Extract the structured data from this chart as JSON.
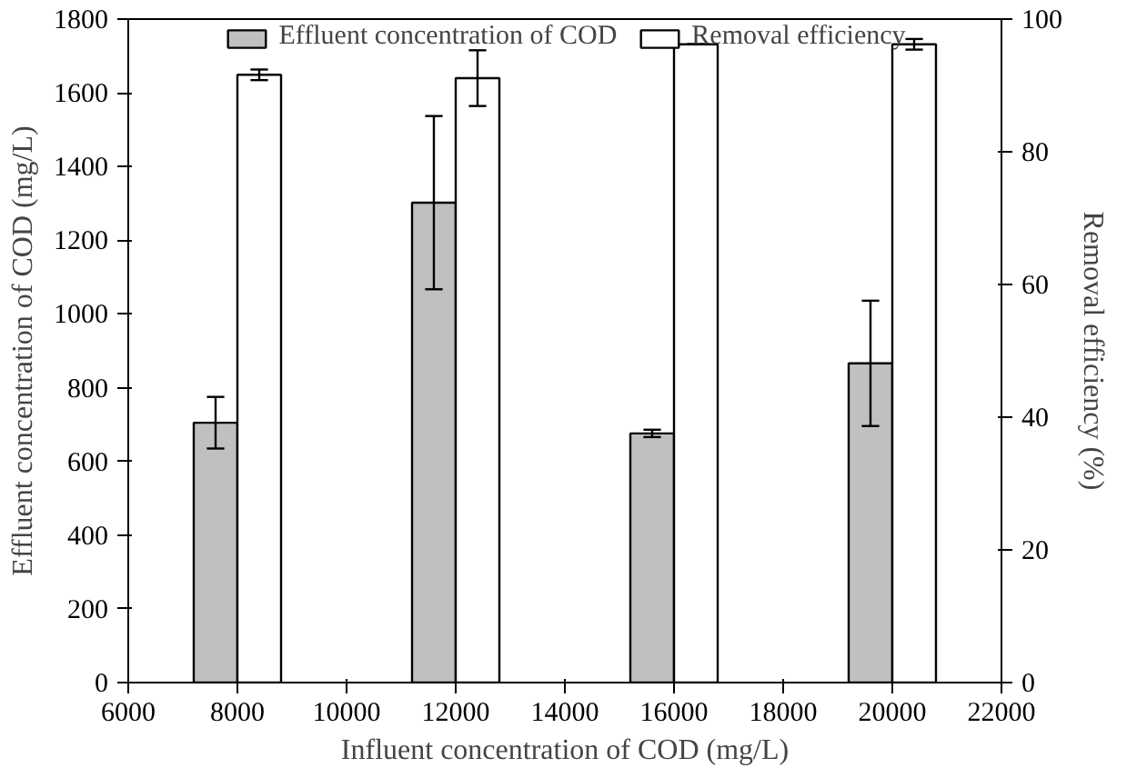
{
  "chart_data": {
    "type": "bar",
    "xlabel": "Influent concentration of COD (mg/L)",
    "ylabel": "Effluent concentration of COD (mg/L)",
    "y2label": "Removal efficiency (%)",
    "x": [
      8000,
      12000,
      16000,
      20000
    ],
    "xlim": [
      6000,
      22000
    ],
    "xticks": [
      6000,
      8000,
      10000,
      12000,
      14000,
      16000,
      18000,
      20000,
      22000
    ],
    "ylim": [
      0,
      1800
    ],
    "yticks": [
      0,
      200,
      400,
      600,
      800,
      1000,
      1200,
      1400,
      1600,
      1800
    ],
    "y2lim": [
      0,
      100
    ],
    "y2ticks": [
      0,
      20,
      40,
      60,
      80,
      100
    ],
    "series": [
      {
        "name": "Effluent concentration of COD",
        "color": "#c0c0c0",
        "values": [
          705,
          1302,
          676,
          866
        ],
        "errors": [
          70,
          235,
          10,
          170
        ]
      },
      {
        "name": "Removal efficiency",
        "color": "#ffffff",
        "axis": "y2",
        "values": [
          91.6,
          91.1,
          96.2,
          96.2
        ],
        "errors": [
          0.8,
          4.2,
          0,
          0.8
        ]
      }
    ],
    "legend": "top",
    "grid": false
  }
}
